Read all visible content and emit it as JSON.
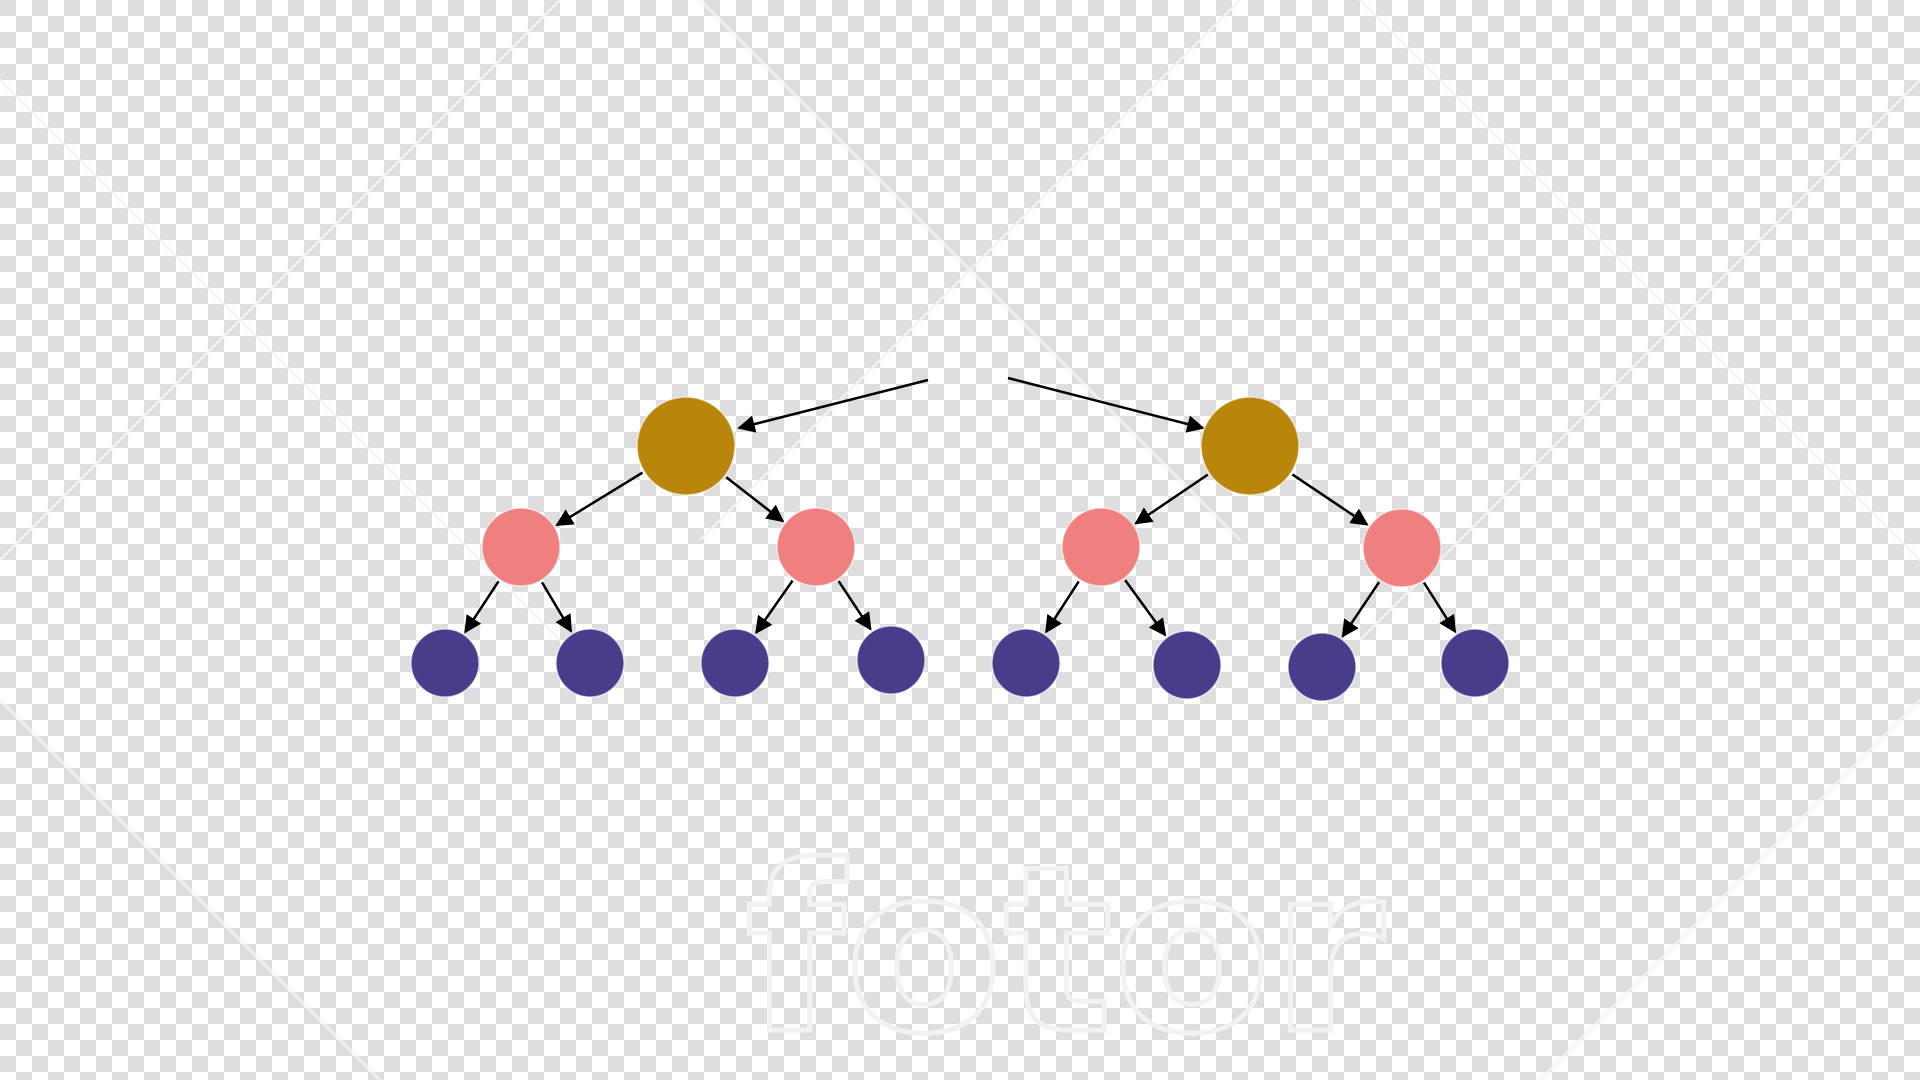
{
  "canvas": {
    "background_style": "transparency-checkerboard",
    "checker_light": "#ffffff",
    "checker_dark": "#dedede"
  },
  "diagram": {
    "type": "binary-tree-forest",
    "arrow_color": "#000000",
    "levels": [
      {
        "level": 1,
        "count": 2,
        "color": "#b8860b"
      },
      {
        "level": 2,
        "count": 4,
        "color": "#f08080"
      },
      {
        "level": 3,
        "count": 8,
        "color": "#483d8b"
      }
    ]
  },
  "watermark": {
    "text": "fotor"
  }
}
